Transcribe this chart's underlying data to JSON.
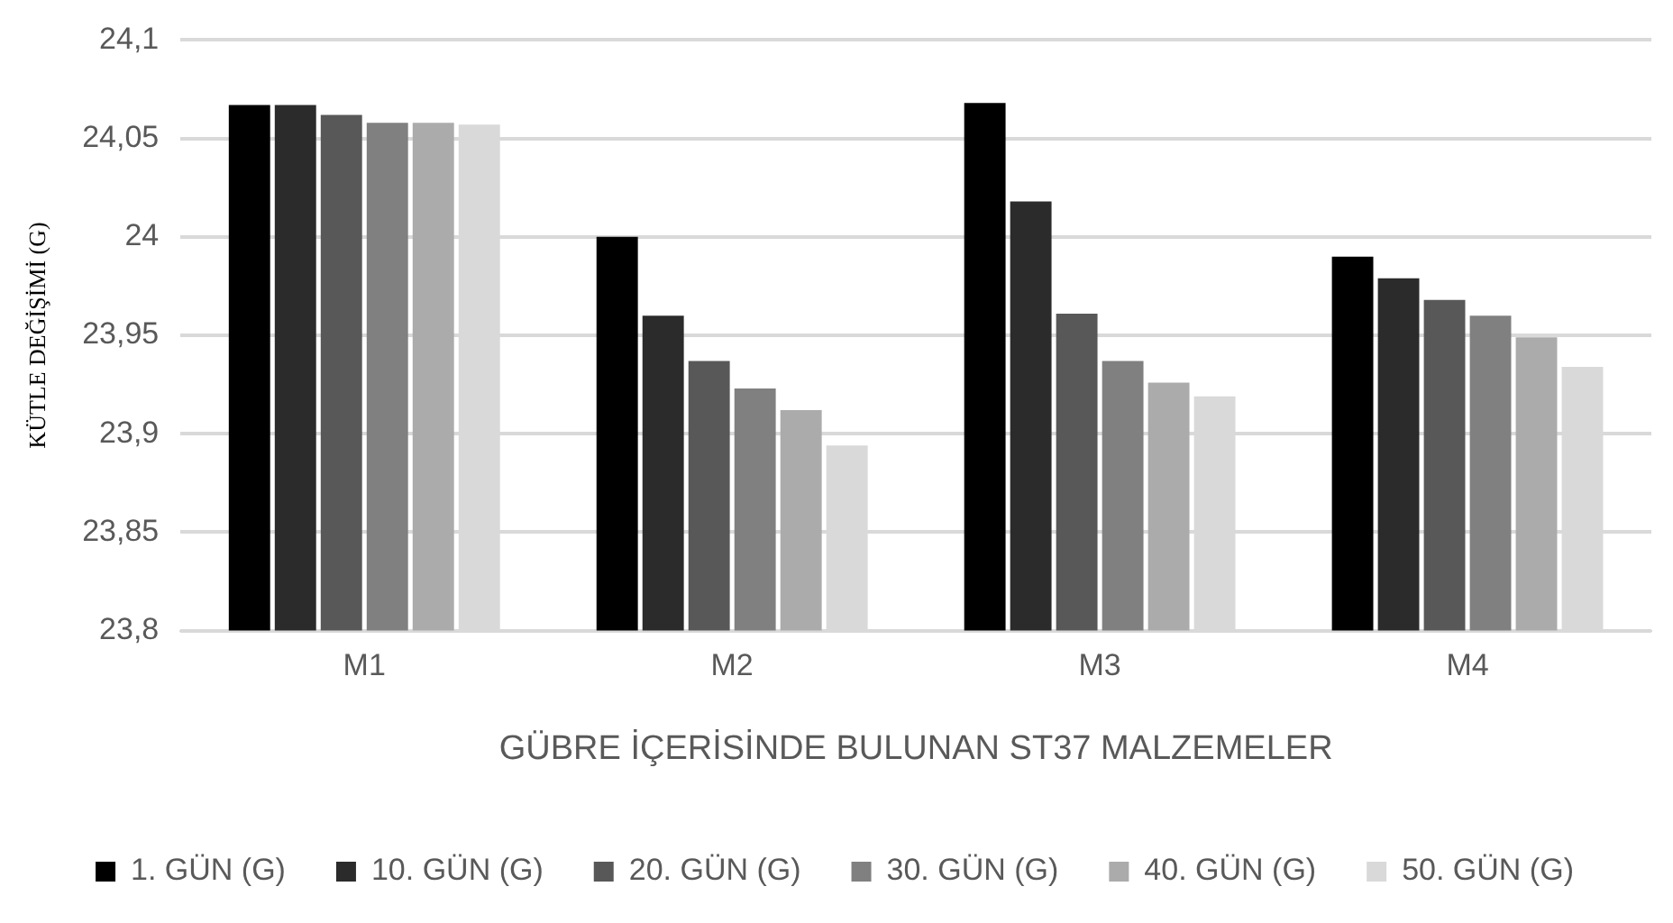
{
  "chart_data": {
    "type": "bar",
    "xlabel": "GÜBRE İÇERİSİNDE BULUNAN ST37 MALZEMELER",
    "ylabel": "KÜTLE DEĞİŞİMİ (G)",
    "categories": [
      "M1",
      "M2",
      "M3",
      "M4"
    ],
    "series": [
      {
        "name": "1. GÜN (G)",
        "color": "#000000",
        "values": [
          24.067,
          24.0,
          24.068,
          23.99
        ]
      },
      {
        "name": "10. GÜN (G)",
        "color": "#2b2b2b",
        "values": [
          24.067,
          23.96,
          24.018,
          23.979
        ]
      },
      {
        "name": "20. GÜN (G)",
        "color": "#585858",
        "values": [
          24.062,
          23.937,
          23.961,
          23.968
        ]
      },
      {
        "name": "30. GÜN (G)",
        "color": "#808080",
        "values": [
          24.058,
          23.923,
          23.937,
          23.96
        ]
      },
      {
        "name": "40. GÜN (G)",
        "color": "#ababab",
        "values": [
          24.058,
          23.912,
          23.926,
          23.949
        ]
      },
      {
        "name": "50. GÜN (G)",
        "color": "#d9d9d9",
        "values": [
          24.057,
          23.894,
          23.919,
          23.934
        ]
      }
    ],
    "ylim": [
      23.8,
      24.1
    ],
    "yticks": [
      {
        "value": 23.8,
        "label": "23,8"
      },
      {
        "value": 23.85,
        "label": "23,85"
      },
      {
        "value": 23.9,
        "label": "23,9"
      },
      {
        "value": 23.95,
        "label": "23,95"
      },
      24,
      {
        "value": 24.05,
        "label": "24,05"
      },
      {
        "value": 24.1,
        "label": "24,1"
      }
    ],
    "grid": "y",
    "legend": "bottom"
  }
}
